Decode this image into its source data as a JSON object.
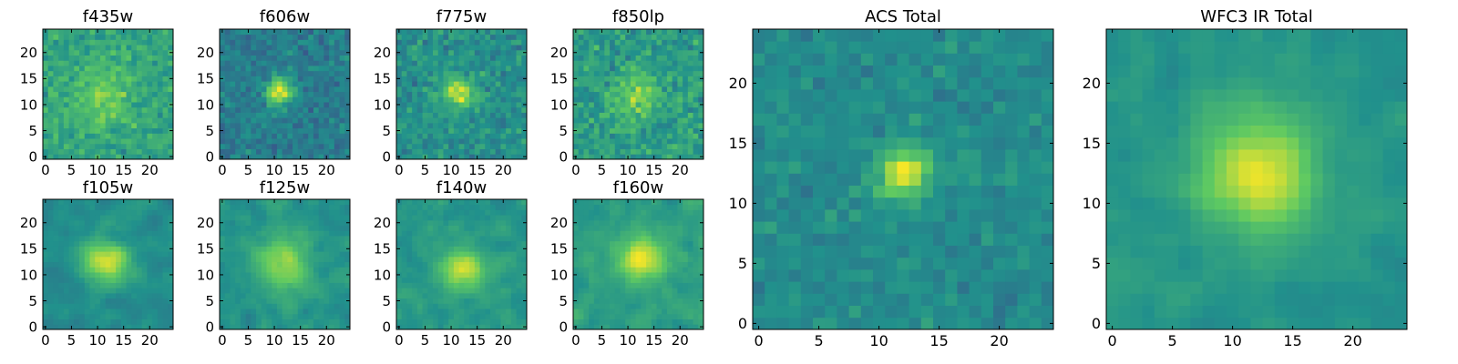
{
  "figure": {
    "colormap": "viridis",
    "colormap_stops": [
      "#440154",
      "#3b528b",
      "#21918c",
      "#5ec962",
      "#fde725"
    ]
  },
  "chart_data": [
    {
      "type": "heatmap",
      "title": "f435w",
      "xticks": [
        "0",
        "5",
        "10",
        "15",
        "20"
      ],
      "yticks": [
        "0",
        "5",
        "10",
        "15",
        "20"
      ],
      "xlim": [
        -0.5,
        24.5
      ],
      "ylim": [
        -0.5,
        24.5
      ],
      "grid_size": [
        25,
        25
      ],
      "source_center": [
        11.0,
        12.0
      ],
      "source_sigma": 4.0,
      "source_peak": 0.2,
      "background_level": 0.58,
      "noise": 0.18,
      "seed": 11,
      "smoothing": 0
    },
    {
      "type": "heatmap",
      "title": "f606w",
      "xticks": [
        "0",
        "5",
        "10",
        "15",
        "20"
      ],
      "yticks": [
        "0",
        "5",
        "10",
        "15",
        "20"
      ],
      "xlim": [
        -0.5,
        24.5
      ],
      "ylim": [
        -0.5,
        24.5
      ],
      "grid_size": [
        25,
        25
      ],
      "source_center": [
        11.0,
        12.5
      ],
      "source_sigma": 1.8,
      "source_peak": 0.55,
      "background_level": 0.42,
      "noise": 0.16,
      "seed": 22,
      "smoothing": 0
    },
    {
      "type": "heatmap",
      "title": "f775w",
      "xticks": [
        "0",
        "5",
        "10",
        "15",
        "20"
      ],
      "yticks": [
        "0",
        "5",
        "10",
        "15",
        "20"
      ],
      "xlim": [
        -0.5,
        24.5
      ],
      "ylim": [
        -0.5,
        24.5
      ],
      "grid_size": [
        25,
        25
      ],
      "source_center": [
        11.5,
        12.5
      ],
      "source_sigma": 2.0,
      "source_peak": 0.45,
      "background_level": 0.5,
      "noise": 0.18,
      "seed": 33,
      "smoothing": 0
    },
    {
      "type": "heatmap",
      "title": "f850lp",
      "xticks": [
        "0",
        "5",
        "10",
        "15",
        "20"
      ],
      "yticks": [
        "0",
        "5",
        "10",
        "15",
        "20"
      ],
      "xlim": [
        -0.5,
        24.5
      ],
      "ylim": [
        -0.5,
        24.5
      ],
      "grid_size": [
        25,
        25
      ],
      "source_center": [
        12.0,
        12.0
      ],
      "source_sigma": 3.0,
      "source_peak": 0.25,
      "background_level": 0.55,
      "noise": 0.2,
      "seed": 44,
      "smoothing": 0
    },
    {
      "type": "heatmap",
      "title": "f105w",
      "xticks": [
        "0",
        "5",
        "10",
        "15",
        "20"
      ],
      "yticks": [
        "0",
        "5",
        "10",
        "15",
        "20"
      ],
      "xlim": [
        -0.5,
        24.5
      ],
      "ylim": [
        -0.5,
        24.5
      ],
      "grid_size": [
        25,
        25
      ],
      "source_center": [
        12.0,
        12.5
      ],
      "source_sigma": 3.0,
      "source_peak": 0.45,
      "background_level": 0.48,
      "noise": 0.12,
      "seed": 55,
      "smoothing": 1
    },
    {
      "type": "heatmap",
      "title": "f125w",
      "xticks": [
        "0",
        "5",
        "10",
        "15",
        "20"
      ],
      "yticks": [
        "0",
        "5",
        "10",
        "15",
        "20"
      ],
      "xlim": [
        -0.5,
        24.5
      ],
      "ylim": [
        -0.5,
        24.5
      ],
      "grid_size": [
        25,
        25
      ],
      "source_center": [
        12.0,
        12.0
      ],
      "source_sigma": 3.5,
      "source_peak": 0.35,
      "background_level": 0.52,
      "noise": 0.13,
      "seed": 66,
      "smoothing": 1
    },
    {
      "type": "heatmap",
      "title": "f140w",
      "xticks": [
        "0",
        "5",
        "10",
        "15",
        "20"
      ],
      "yticks": [
        "0",
        "5",
        "10",
        "15",
        "20"
      ],
      "xlim": [
        -0.5,
        24.5
      ],
      "ylim": [
        -0.5,
        24.5
      ],
      "grid_size": [
        25,
        25
      ],
      "source_center": [
        12.0,
        11.5
      ],
      "source_sigma": 3.0,
      "source_peak": 0.4,
      "background_level": 0.52,
      "noise": 0.14,
      "seed": 77,
      "smoothing": 1
    },
    {
      "type": "heatmap",
      "title": "f160w",
      "xticks": [
        "0",
        "5",
        "10",
        "15",
        "20"
      ],
      "yticks": [
        "0",
        "5",
        "10",
        "15",
        "20"
      ],
      "xlim": [
        -0.5,
        24.5
      ],
      "ylim": [
        -0.5,
        24.5
      ],
      "grid_size": [
        25,
        25
      ],
      "source_center": [
        12.5,
        13.0
      ],
      "source_sigma": 3.0,
      "source_peak": 0.45,
      "background_level": 0.55,
      "noise": 0.13,
      "seed": 88,
      "smoothing": 1
    },
    {
      "type": "heatmap",
      "title": "ACS Total",
      "xticks": [
        "0",
        "5",
        "10",
        "15",
        "20"
      ],
      "yticks": [
        "0",
        "5",
        "10",
        "15",
        "20"
      ],
      "xlim": [
        -0.5,
        24.5
      ],
      "ylim": [
        -0.5,
        24.5
      ],
      "grid_size": [
        25,
        25
      ],
      "source_center": [
        12.0,
        12.5
      ],
      "source_sigma": 1.5,
      "source_peak": 0.5,
      "background_level": 0.48,
      "noise": 0.12,
      "seed": 99,
      "smoothing": 0
    },
    {
      "type": "heatmap",
      "title": "WFC3 IR Total",
      "xticks": [
        "0",
        "5",
        "10",
        "15",
        "20"
      ],
      "yticks": [
        "0",
        "5",
        "10",
        "15",
        "20"
      ],
      "xlim": [
        -0.5,
        24.5
      ],
      "ylim": [
        -0.5,
        24.5
      ],
      "grid_size": [
        25,
        25
      ],
      "source_center": [
        12.0,
        12.5
      ],
      "source_sigma": 3.5,
      "source_peak": 0.45,
      "background_level": 0.52,
      "noise": 0.1,
      "seed": 111,
      "smoothing": 1
    }
  ]
}
